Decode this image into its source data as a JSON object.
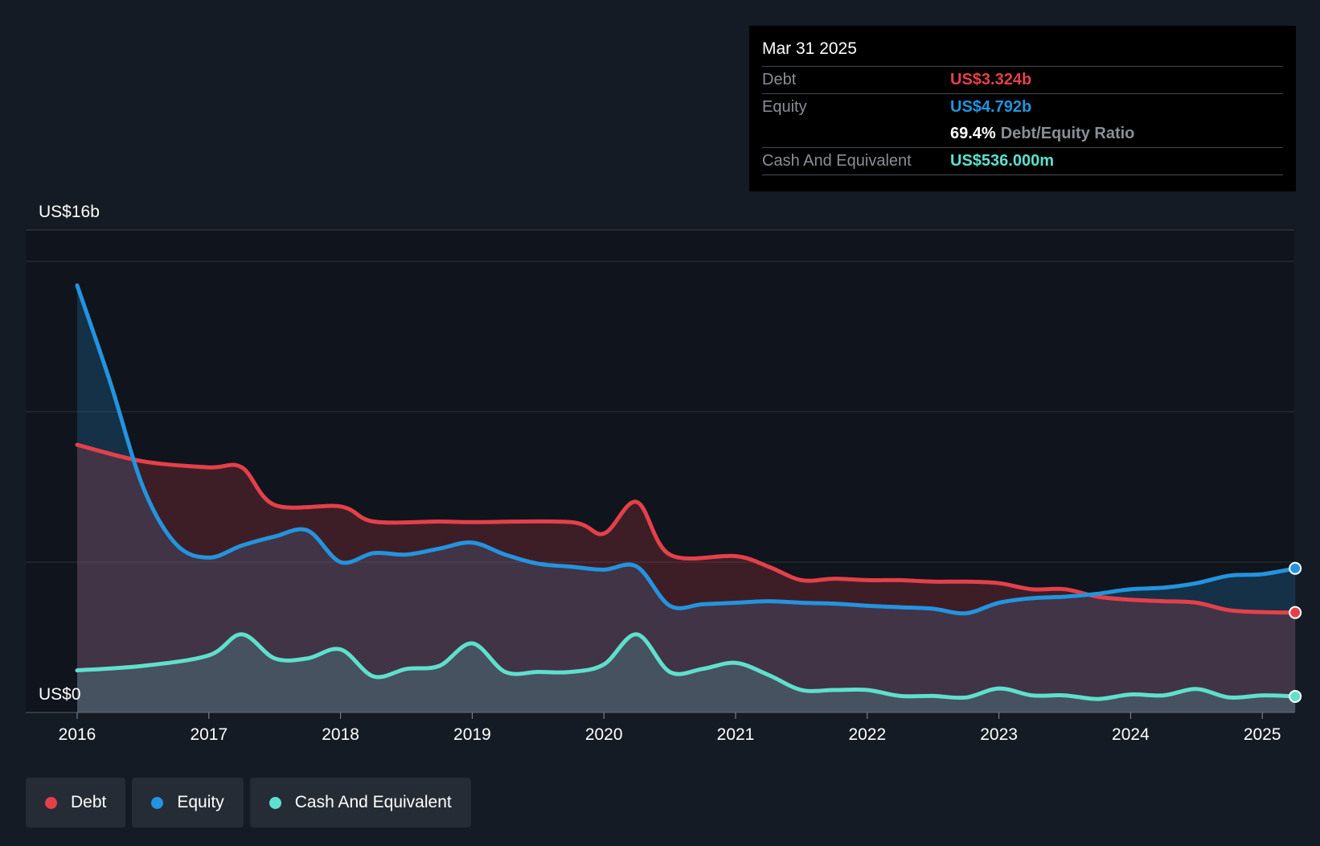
{
  "tooltip": {
    "date": "Mar 31 2025",
    "debt_label": "Debt",
    "debt_value": "US$3.324b",
    "equity_label": "Equity",
    "equity_value": "US$4.792b",
    "ratio_value": "69.4%",
    "ratio_label": "Debt/Equity Ratio",
    "cash_label": "Cash And Equivalent",
    "cash_value": "US$536.000m"
  },
  "legend": [
    {
      "label": "Debt",
      "color": "#e5404a"
    },
    {
      "label": "Equity",
      "color": "#2394df"
    },
    {
      "label": "Cash And Equivalent",
      "color": "#5fe0cc"
    }
  ],
  "chart_data": {
    "type": "area",
    "y_top_label": "US$16b",
    "y_bottom_label": "US$0",
    "ylim": [
      0,
      16
    ],
    "grid": true,
    "x_ticks": [
      {
        "label": "2016",
        "x": 2016
      },
      {
        "label": "2017",
        "x": 2017
      },
      {
        "label": "2018",
        "x": 2018
      },
      {
        "label": "2019",
        "x": 2019
      },
      {
        "label": "2020",
        "x": 2020
      },
      {
        "label": "2021",
        "x": 2021
      },
      {
        "label": "2022",
        "x": 2022
      },
      {
        "label": "2023",
        "x": 2023
      },
      {
        "label": "2024",
        "x": 2024
      },
      {
        "label": "2025",
        "x": 2025
      }
    ],
    "series": [
      {
        "name": "Debt",
        "color": "#e5404a",
        "points": [
          [
            2016,
            8.9
          ],
          [
            2016.5,
            8.35
          ],
          [
            2017,
            8.15
          ],
          [
            2017.25,
            8.15
          ],
          [
            2017.5,
            6.9
          ],
          [
            2018,
            6.85
          ],
          [
            2018.25,
            6.35
          ],
          [
            2018.75,
            6.35
          ],
          [
            2019,
            6.33
          ],
          [
            2019.75,
            6.33
          ],
          [
            2020,
            5.95
          ],
          [
            2020.25,
            7.0
          ],
          [
            2020.5,
            5.25
          ],
          [
            2021,
            5.2
          ],
          [
            2021.25,
            4.85
          ],
          [
            2021.5,
            4.4
          ],
          [
            2021.75,
            4.45
          ],
          [
            2022,
            4.4
          ],
          [
            2022.25,
            4.4
          ],
          [
            2022.5,
            4.35
          ],
          [
            2022.75,
            4.35
          ],
          [
            2023,
            4.3
          ],
          [
            2023.25,
            4.1
          ],
          [
            2023.5,
            4.1
          ],
          [
            2023.75,
            3.85
          ],
          [
            2024,
            3.75
          ],
          [
            2024.25,
            3.7
          ],
          [
            2024.5,
            3.65
          ],
          [
            2024.75,
            3.4
          ],
          [
            2025,
            3.34
          ],
          [
            2025.25,
            3.324
          ]
        ]
      },
      {
        "name": "Equity",
        "color": "#2394df",
        "points": [
          [
            2016,
            14.2
          ],
          [
            2016.25,
            11.0
          ],
          [
            2016.5,
            7.5
          ],
          [
            2016.75,
            5.6
          ],
          [
            2017,
            5.15
          ],
          [
            2017.25,
            5.55
          ],
          [
            2017.5,
            5.85
          ],
          [
            2017.75,
            6.05
          ],
          [
            2018,
            5.0
          ],
          [
            2018.25,
            5.3
          ],
          [
            2018.5,
            5.25
          ],
          [
            2018.75,
            5.45
          ],
          [
            2019,
            5.65
          ],
          [
            2019.25,
            5.25
          ],
          [
            2019.5,
            4.95
          ],
          [
            2019.75,
            4.85
          ],
          [
            2020,
            4.75
          ],
          [
            2020.25,
            4.85
          ],
          [
            2020.5,
            3.55
          ],
          [
            2020.75,
            3.6
          ],
          [
            2021,
            3.65
          ],
          [
            2021.25,
            3.7
          ],
          [
            2021.5,
            3.65
          ],
          [
            2021.75,
            3.62
          ],
          [
            2022,
            3.55
          ],
          [
            2022.25,
            3.5
          ],
          [
            2022.5,
            3.45
          ],
          [
            2022.75,
            3.3
          ],
          [
            2023,
            3.65
          ],
          [
            2023.25,
            3.8
          ],
          [
            2023.5,
            3.85
          ],
          [
            2023.75,
            3.95
          ],
          [
            2024,
            4.1
          ],
          [
            2024.25,
            4.15
          ],
          [
            2024.5,
            4.3
          ],
          [
            2024.75,
            4.55
          ],
          [
            2025,
            4.6
          ],
          [
            2025.25,
            4.792
          ]
        ]
      },
      {
        "name": "Cash And Equivalent",
        "color": "#5fe0cc",
        "points": [
          [
            2016,
            1.4
          ],
          [
            2016.5,
            1.55
          ],
          [
            2017,
            1.9
          ],
          [
            2017.25,
            2.6
          ],
          [
            2017.5,
            1.8
          ],
          [
            2017.75,
            1.8
          ],
          [
            2018,
            2.1
          ],
          [
            2018.25,
            1.2
          ],
          [
            2018.5,
            1.45
          ],
          [
            2018.75,
            1.55
          ],
          [
            2019,
            2.3
          ],
          [
            2019.25,
            1.35
          ],
          [
            2019.5,
            1.35
          ],
          [
            2019.75,
            1.35
          ],
          [
            2020,
            1.6
          ],
          [
            2020.25,
            2.6
          ],
          [
            2020.5,
            1.35
          ],
          [
            2020.75,
            1.45
          ],
          [
            2021,
            1.65
          ],
          [
            2021.25,
            1.25
          ],
          [
            2021.5,
            0.75
          ],
          [
            2021.75,
            0.75
          ],
          [
            2022,
            0.75
          ],
          [
            2022.25,
            0.55
          ],
          [
            2022.5,
            0.55
          ],
          [
            2022.75,
            0.5
          ],
          [
            2023,
            0.8
          ],
          [
            2023.25,
            0.57
          ],
          [
            2023.5,
            0.57
          ],
          [
            2023.75,
            0.45
          ],
          [
            2024,
            0.6
          ],
          [
            2024.25,
            0.57
          ],
          [
            2024.5,
            0.78
          ],
          [
            2024.75,
            0.5
          ],
          [
            2025,
            0.57
          ],
          [
            2025.25,
            0.536
          ]
        ]
      }
    ]
  }
}
